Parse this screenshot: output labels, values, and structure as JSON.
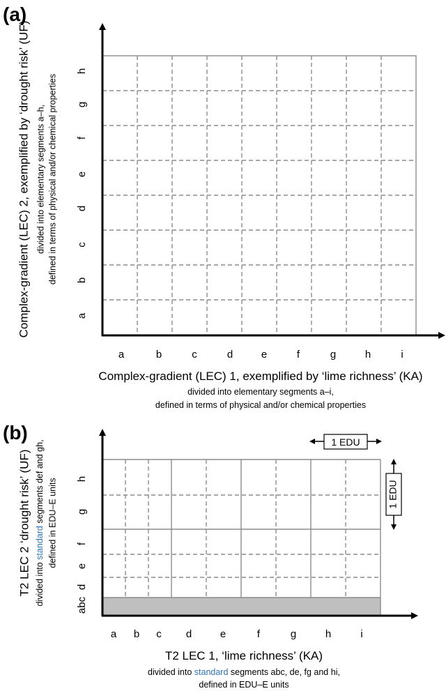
{
  "panel_a": {
    "label": "(a)",
    "x_segments": [
      "a",
      "b",
      "c",
      "d",
      "e",
      "f",
      "g",
      "h",
      "i"
    ],
    "y_segments": [
      "a",
      "b",
      "c",
      "d",
      "e",
      "f",
      "g",
      "h"
    ],
    "x_title": "Complex-gradient (LEC) 1, exemplified by ‘lime richness’ (KA)",
    "x_sub1": "divided into elementary segments a–i,",
    "x_sub2": "defined in terms of physical and/or chemical properties",
    "y_title": "Complex-gradient (LEC) 2, exemplified by ‘drought risk’ (UF)",
    "y_sub1": "divided into elementary segments a–h,",
    "y_sub2": "defined in terms of physical and/or chemical properties"
  },
  "panel_b": {
    "label": "(b)",
    "x_segments": [
      "a",
      "b",
      "c",
      "d",
      "e",
      "f",
      "g",
      "h",
      "i"
    ],
    "y_segments": [
      "abc",
      "d",
      "e",
      "f",
      "g",
      "h"
    ],
    "x_title": "T2 LEC 1, ‘lime richness’ (KA)",
    "x_sub_pre": "divided into ",
    "x_sub_highlight": "standard",
    "x_sub_post": " segments abc, de, fg and hi,",
    "x_sub2": "defined in EDU–E units",
    "y_title": "T2 LEC 2 ‘drought risk’ (UF)",
    "y_sub_pre": "divided into ",
    "y_sub_highlight": "standard",
    "y_sub_post": " segments def and gh,",
    "y_sub2": "defined in EDU–E units",
    "edu_horizontal": "1 EDU",
    "edu_vertical": "1 EDU"
  },
  "colors": {
    "highlight": "#2e74b5",
    "grid": "#8c8c8c",
    "shade": "#bfbfbf"
  }
}
